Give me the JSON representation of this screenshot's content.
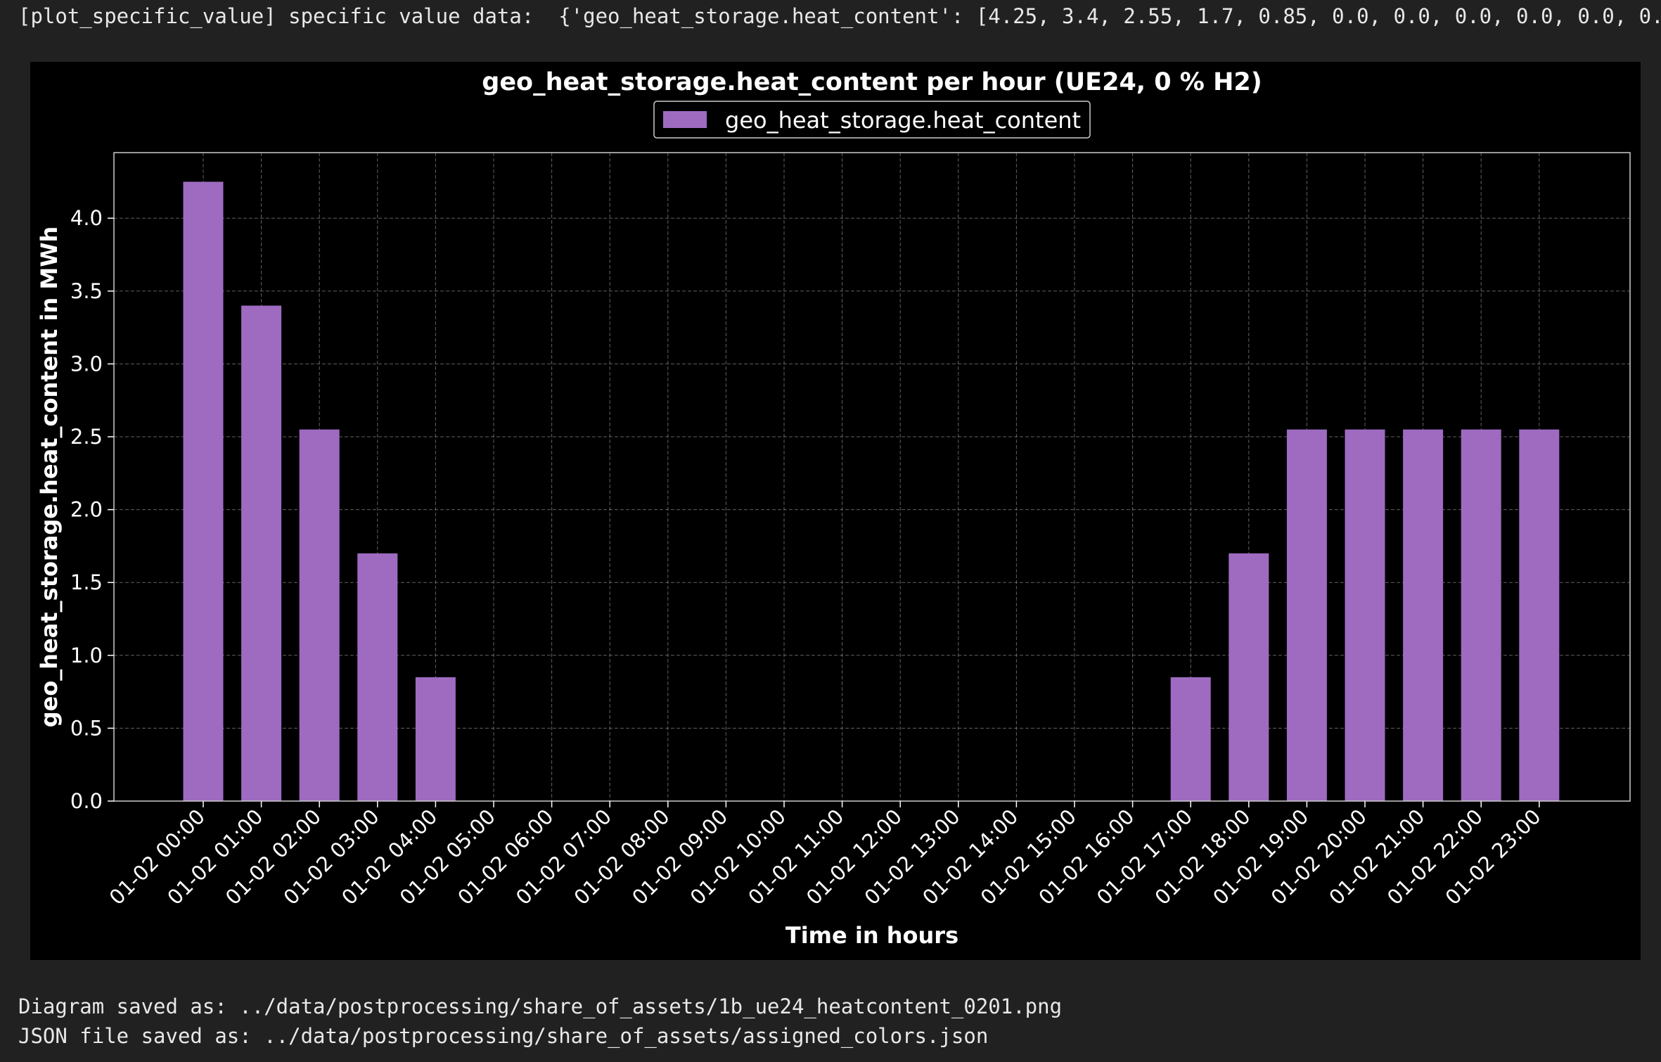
{
  "console": {
    "top_line": "[plot_specific_value] specific value data:  {'geo_heat_storage.heat_content': [4.25, 3.4, 2.55, 1.7, 0.85, 0.0, 0.0, 0.0, 0.0, 0.0, 0.0",
    "saved_diagram": "Diagram saved as: ../data/postprocessing/share_of_assets/1b_ue24_heatcontent_0201.png",
    "saved_json": "JSON file saved as: ../data/postprocessing/share_of_assets/assigned_colors.json"
  },
  "chart_data": {
    "type": "bar",
    "title": "geo_heat_storage.heat_content per hour (UE24, 0 % H2)",
    "xlabel": "Time in hours",
    "ylabel": "geo_heat_storage.heat_content in MWh",
    "categories": [
      "01-02 00:00",
      "01-02 01:00",
      "01-02 02:00",
      "01-02 03:00",
      "01-02 04:00",
      "01-02 05:00",
      "01-02 06:00",
      "01-02 07:00",
      "01-02 08:00",
      "01-02 09:00",
      "01-02 10:00",
      "01-02 11:00",
      "01-02 12:00",
      "01-02 13:00",
      "01-02 14:00",
      "01-02 15:00",
      "01-02 16:00",
      "01-02 17:00",
      "01-02 18:00",
      "01-02 19:00",
      "01-02 20:00",
      "01-02 21:00",
      "01-02 22:00",
      "01-02 23:00"
    ],
    "series": [
      {
        "name": "geo_heat_storage.heat_content",
        "color": "#9e6bc1",
        "values": [
          4.25,
          3.4,
          2.55,
          1.7,
          0.85,
          0.0,
          0.0,
          0.0,
          0.0,
          0.0,
          0.0,
          0.0,
          0.0,
          0.0,
          0.0,
          0.0,
          0.0,
          0.85,
          1.7,
          2.55,
          2.55,
          2.55,
          2.55,
          2.55
        ]
      }
    ],
    "ylim": [
      0,
      4.45
    ],
    "yticks": [
      "0.0",
      "0.5",
      "1.0",
      "1.5",
      "2.0",
      "2.5",
      "3.0",
      "3.5",
      "4.0"
    ],
    "grid": true,
    "legend": "top-center",
    "background": "#000000",
    "foreground": "#ffffff"
  }
}
